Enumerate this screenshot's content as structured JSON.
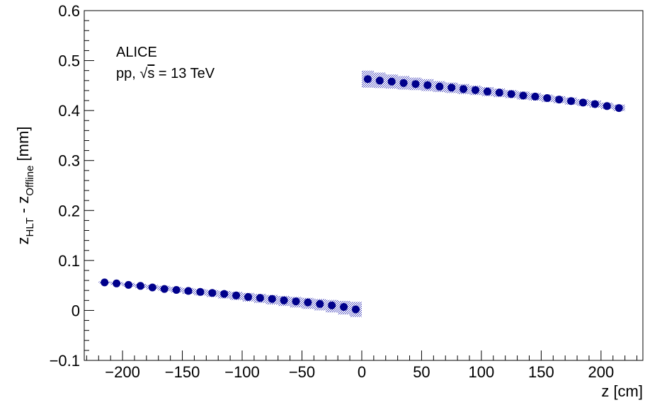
{
  "chart_data": {
    "type": "scatter",
    "x_ticks": [
      -200,
      -150,
      -100,
      -50,
      0,
      50,
      100,
      150,
      200
    ],
    "y_ticks": [
      -0.1,
      0,
      0.1,
      0.2,
      0.3,
      0.4,
      0.5,
      0.6
    ],
    "x_tick_labels": [
      "−200",
      "−150",
      "−100",
      "−50",
      "0",
      "50",
      "100",
      "150",
      "200"
    ],
    "y_tick_labels": [
      "−0.1",
      "0",
      "0.1",
      "0.2",
      "0.3",
      "0.4",
      "0.5",
      "0.6"
    ],
    "xlim": [
      -232,
      235
    ],
    "ylim": [
      -0.1,
      0.6
    ],
    "xlabel": "z [cm]",
    "ylabel_parts": {
      "z": "z",
      "hlt": "HLT",
      "minus": " - z",
      "offline": "Offline",
      "unit": " [mm]"
    },
    "annotation": {
      "line1": "ALICE",
      "line2_pre": "pp, ",
      "sqrt": "√",
      "s": "s",
      "line2_post": " = 13 TeV"
    },
    "series": [
      {
        "color": "#00008b",
        "band_color": "#3a3ab8",
        "x": [
          -215,
          -205,
          -195,
          -185,
          -175,
          -165,
          -155,
          -145,
          -135,
          -125,
          -115,
          -105,
          -95,
          -85,
          -75,
          -65,
          -55,
          -45,
          -35,
          -25,
          -15,
          -5
        ],
        "y": [
          0.056,
          0.054,
          0.051,
          0.049,
          0.046,
          0.043,
          0.041,
          0.039,
          0.037,
          0.035,
          0.033,
          0.03,
          0.027,
          0.025,
          0.023,
          0.02,
          0.018,
          0.016,
          0.013,
          0.01,
          0.007,
          0.002
        ],
        "band_low": [
          0.054,
          0.051,
          0.048,
          0.045,
          0.042,
          0.039,
          0.036,
          0.033,
          0.03,
          0.027,
          0.024,
          0.021,
          0.018,
          0.015,
          0.012,
          0.009,
          0.006,
          0.003,
          0.0,
          -0.004,
          -0.008,
          -0.013
        ],
        "band_high": [
          0.058,
          0.057,
          0.055,
          0.053,
          0.051,
          0.049,
          0.047,
          0.045,
          0.043,
          0.041,
          0.039,
          0.037,
          0.035,
          0.033,
          0.031,
          0.029,
          0.027,
          0.025,
          0.023,
          0.021,
          0.019,
          0.017
        ]
      },
      {
        "color": "#00008b",
        "band_color": "#3a3ab8",
        "x": [
          5,
          15,
          25,
          35,
          45,
          55,
          65,
          75,
          85,
          95,
          105,
          115,
          125,
          135,
          145,
          155,
          165,
          175,
          185,
          195,
          205,
          215
        ],
        "y": [
          0.463,
          0.46,
          0.458,
          0.455,
          0.453,
          0.451,
          0.448,
          0.446,
          0.443,
          0.441,
          0.438,
          0.436,
          0.433,
          0.43,
          0.428,
          0.425,
          0.422,
          0.419,
          0.416,
          0.413,
          0.409,
          0.405
        ],
        "band_low": [
          0.446,
          0.445,
          0.444,
          0.442,
          0.441,
          0.439,
          0.437,
          0.435,
          0.433,
          0.431,
          0.429,
          0.427,
          0.425,
          0.422,
          0.42,
          0.417,
          0.415,
          0.412,
          0.409,
          0.406,
          0.403,
          0.399
        ],
        "band_high": [
          0.48,
          0.476,
          0.472,
          0.469,
          0.466,
          0.463,
          0.459,
          0.456,
          0.453,
          0.45,
          0.447,
          0.444,
          0.441,
          0.438,
          0.435,
          0.432,
          0.429,
          0.426,
          0.423,
          0.42,
          0.416,
          0.412
        ]
      }
    ]
  }
}
